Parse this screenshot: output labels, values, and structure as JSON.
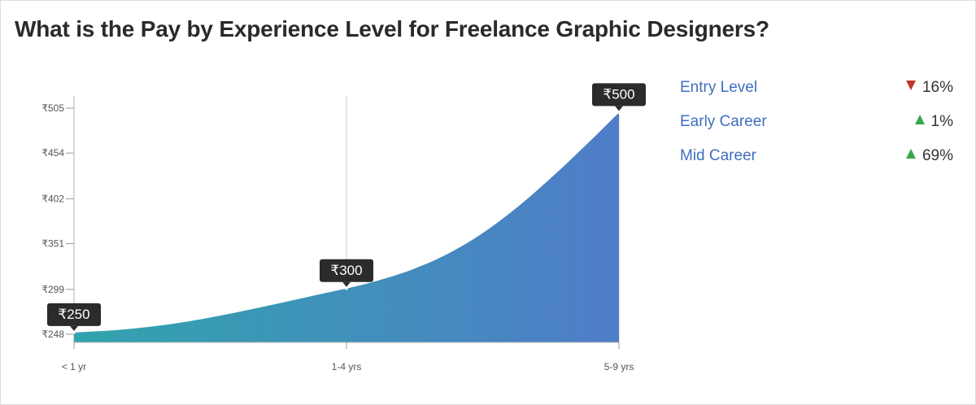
{
  "title": "What is the Pay by Experience Level for Freelance Graphic Designers?",
  "chart_data": {
    "type": "area",
    "categories": [
      "< 1 yr",
      "1-4 yrs",
      "5-9 yrs"
    ],
    "values": [
      250,
      300,
      500
    ],
    "data_labels": [
      "₹250",
      "₹300",
      "₹500"
    ],
    "y_ticks": [
      248,
      299,
      351,
      402,
      454,
      505
    ],
    "y_tick_labels": [
      "₹248",
      "₹299",
      "₹351",
      "₹402",
      "₹454",
      "₹505"
    ],
    "ylim": [
      248,
      505
    ],
    "gradient": [
      "#31a4ad",
      "#4f7dc8"
    ],
    "grid": "vertical line at 1-4 yrs"
  },
  "legend": [
    {
      "label": "Entry Level",
      "direction": "down",
      "change": "16%",
      "color": "#c0392b"
    },
    {
      "label": "Early Career",
      "direction": "up",
      "change": "1%",
      "color": "#3aa64a"
    },
    {
      "label": "Mid Career",
      "direction": "up",
      "change": "69%",
      "color": "#3aa64a"
    }
  ]
}
